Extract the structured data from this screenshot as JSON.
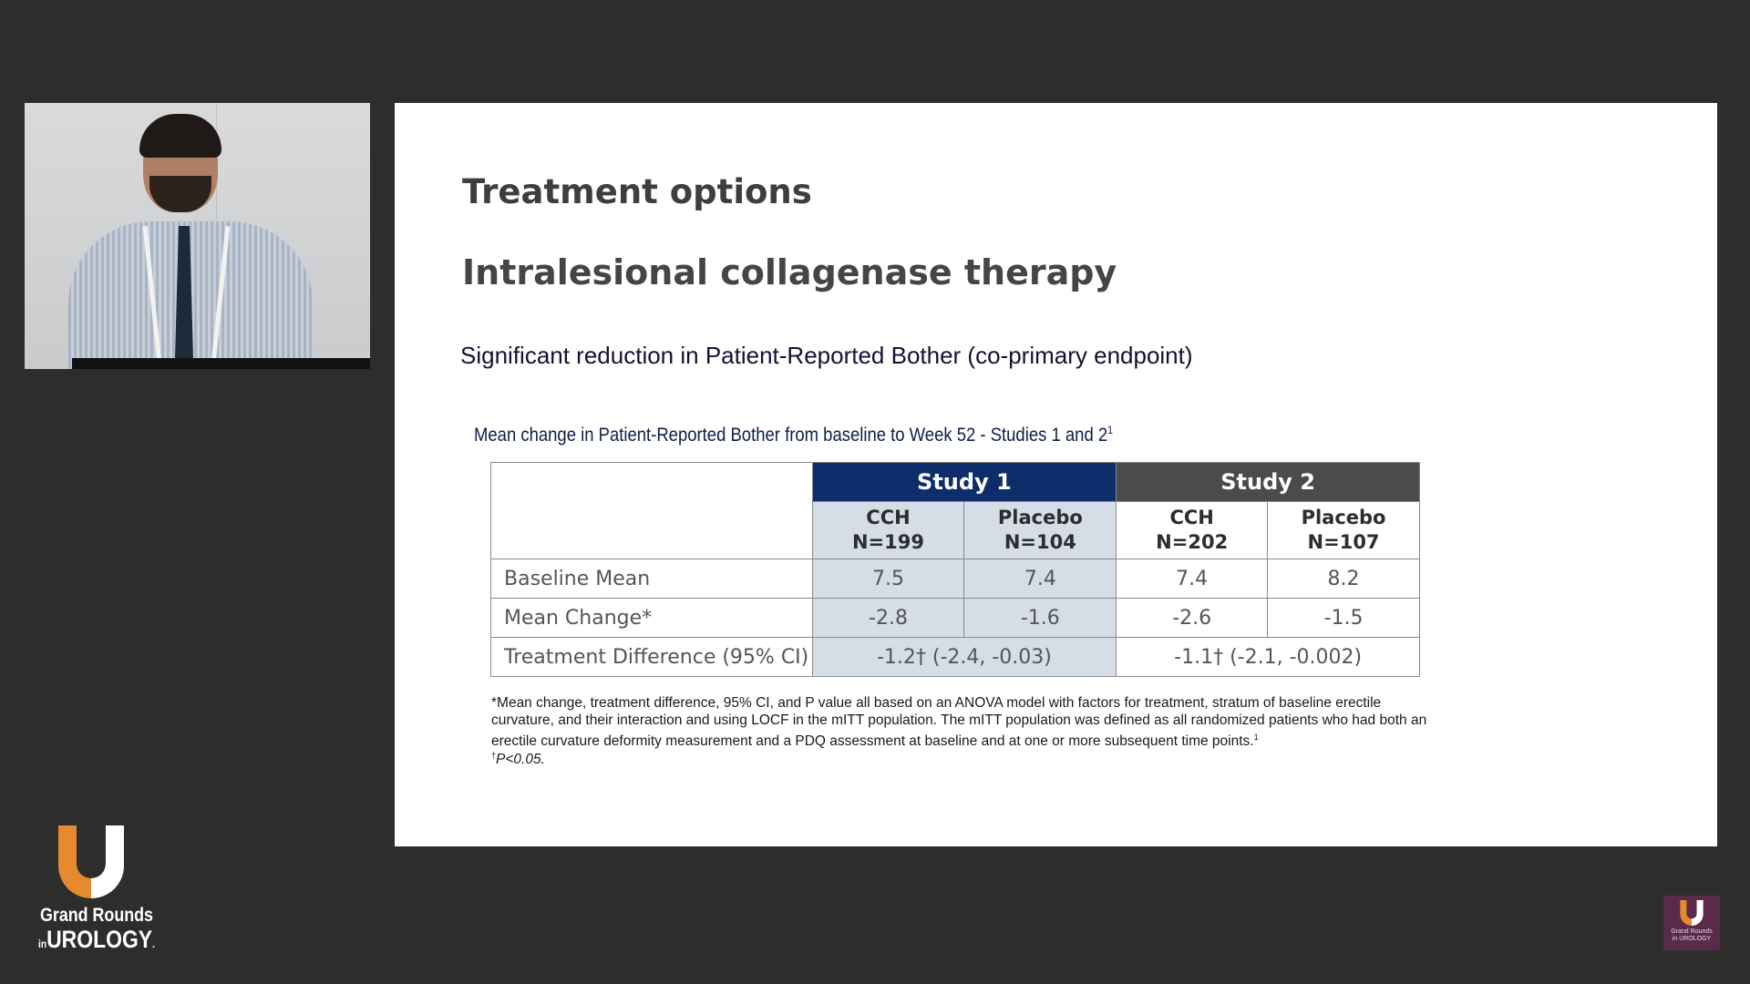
{
  "slide": {
    "title": "Treatment options",
    "subtitle": "Intralesional collagenase therapy",
    "point": "Significant reduction in Patient-Reported Bother (co-primary endpoint)",
    "caption": "Mean change in Patient-Reported Bother from baseline to Week 52 - Studies 1 and 2",
    "caption_ref": "1",
    "table": {
      "study1": "Study 1",
      "study2": "Study 2",
      "groups": [
        {
          "name": "CCH",
          "n": "N=199"
        },
        {
          "name": "Placebo",
          "n": "N=104"
        },
        {
          "name": "CCH",
          "n": "N=202"
        },
        {
          "name": "Placebo",
          "n": "N=107"
        }
      ],
      "rows": [
        {
          "label": "Baseline Mean",
          "values": [
            "7.5",
            "7.4",
            "7.4",
            "8.2"
          ]
        },
        {
          "label": "Mean Change*",
          "values": [
            "-2.8",
            "-1.6",
            "-2.6",
            "-1.5"
          ]
        }
      ],
      "diff": {
        "label": "Treatment Difference (95% CI)",
        "study1": "-1.2† (-2.4, -0.03)",
        "study2": "-1.1† (-2.1, -0.002)"
      }
    },
    "footnote": "*Mean change, treatment difference, 95% CI, and P value all based on an ANOVA model with factors for treatment, stratum of baseline erectile curvature, and their interaction and using LOCF in the mITT population. The mITT population was defined as all randomized patients who had both an erectile curvature deformity measurement and a PDQ assessment at baseline and at one or more subsequent time points.",
    "footnote_ref": "1",
    "footnote2_mark": "†",
    "footnote2": "P<0.05."
  },
  "logo": {
    "line1": "Grand Rounds",
    "line2_prefix": "in",
    "line2": "UROLOGY",
    "line2_suffix": ".",
    "accent": "#e58a2e"
  },
  "badge": {
    "line1": "Grand Rounds",
    "line2": "in UROLOGY"
  },
  "colors": {
    "background": "#2d2d2c",
    "study1_header": "#0d2d6b",
    "study2_header": "#4b4b4b",
    "study1_fill": "#d5dde7"
  }
}
